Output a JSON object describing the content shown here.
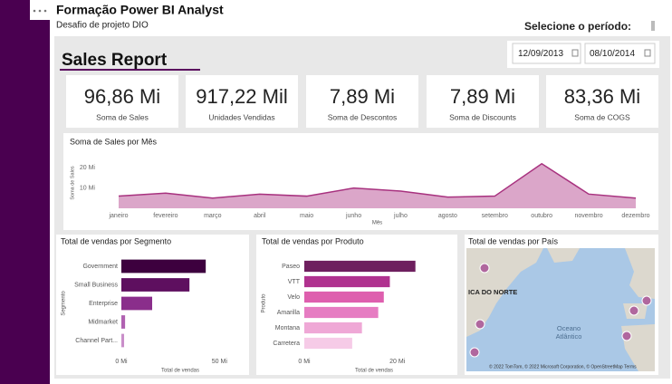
{
  "header": {
    "title": "Formação Power BI Analyst",
    "subtitle": "Desafio de projeto DIO",
    "period_label": "Selecione o período:"
  },
  "report_title": "Sales Report",
  "date_range": {
    "start": "12/09/2013",
    "end": "08/10/2014"
  },
  "kpis": [
    {
      "value": "96,86 Mi",
      "label": "Soma de Sales"
    },
    {
      "value": "917,22 Mil",
      "label": "Unidades Vendidas"
    },
    {
      "value": "7,89 Mi",
      "label": "Soma de Descontos"
    },
    {
      "value": "7,89 Mi",
      "label": "Soma de Discounts"
    },
    {
      "value": "83,36 Mi",
      "label": "Soma de COGS"
    }
  ],
  "chart_data": [
    {
      "type": "area",
      "title": "Soma de Sales por Mês",
      "x_label": "Mês",
      "y_label": "Soma de Sales",
      "categories": [
        "janeiro",
        "fevereiro",
        "março",
        "abril",
        "maio",
        "junho",
        "julho",
        "agosto",
        "setembro",
        "outubro",
        "novembro",
        "dezembro"
      ],
      "values": [
        6,
        7.5,
        5,
        7,
        6,
        10,
        8.5,
        5.5,
        6,
        22,
        7,
        5
      ],
      "color": "#a8327f",
      "fill": "#dba6c9",
      "ylim": [
        0,
        25
      ],
      "yticks": [
        {
          "value": 10,
          "label": "10 Mi"
        },
        {
          "value": 20,
          "label": "20 Mi"
        }
      ]
    },
    {
      "type": "hbar",
      "title": "Total de vendas por Segmento",
      "x_label": "Total de vendas",
      "y_label": "Segmento",
      "categories": [
        "Government",
        "Small Business",
        "Enterprise",
        "Midmarket",
        "Channel Part..."
      ],
      "values": [
        43,
        34.7,
        15.7,
        1.9,
        1.4
      ],
      "colors": [
        "#3d003e",
        "#5e0f5f",
        "#8a2e8b",
        "#b061b1",
        "#c98ec9"
      ],
      "xlim": [
        0,
        60
      ],
      "xticks": [
        {
          "value": 0,
          "label": "0 Mi"
        },
        {
          "value": 50,
          "label": "50 Mi"
        }
      ]
    },
    {
      "type": "hbar",
      "title": "Total de vendas por Produto",
      "x_label": "Total de vendas",
      "y_label": "Produto",
      "categories": [
        "Paseo",
        "VTT",
        "Velo",
        "Amarilla",
        "Montana",
        "Carretera"
      ],
      "values": [
        23.9,
        18.4,
        17.1,
        15.9,
        12.4,
        10.3
      ],
      "colors": [
        "#6e1f5e",
        "#b0328f",
        "#de5fae",
        "#e67cc2",
        "#efa8d6",
        "#f6cbe7"
      ],
      "xlim": [
        0,
        30
      ],
      "xticks": [
        {
          "value": 0,
          "label": "0 Mi"
        },
        {
          "value": 20,
          "label": "20 Mi"
        }
      ]
    }
  ],
  "map": {
    "title": "Total de vendas por País",
    "region_label": "ICA DO NORTE",
    "ocean_line1": "Oceano",
    "ocean_line2": "Atlântico",
    "attribution": "© 2022 TomTom, © 2022 Microsoft Corporation, © OpenStreetMap  Terms"
  }
}
